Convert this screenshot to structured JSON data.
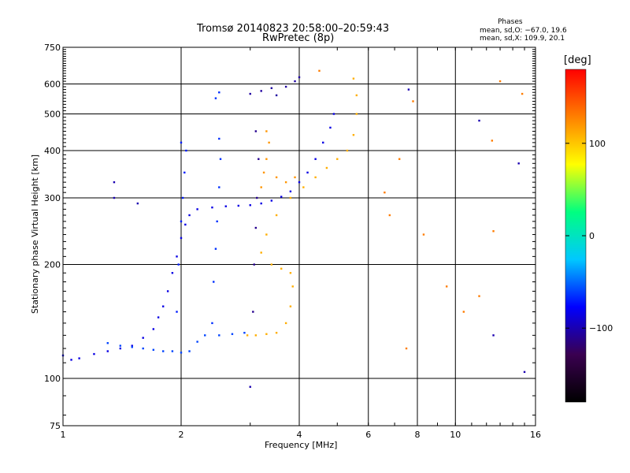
{
  "title": {
    "line1": "Tromsø 20140823 20:58:00–20:59:43",
    "line2": "RwPretec (8p)"
  },
  "phase_info": {
    "heading": "Phases",
    "o_mode": "mean, sd,O: −67.0, 19.6",
    "x_mode": "mean, sd,X: 109.9, 20.1"
  },
  "axes": {
    "xlabel": "Frequency [MHz]",
    "ylabel": "Stationary phase Virtual Height [km]"
  },
  "colorbar": {
    "unit": "[deg]",
    "ticks": [
      {
        "value": 100,
        "label": "100"
      },
      {
        "value": 0,
        "label": "0"
      },
      {
        "value": -100,
        "label": "−100"
      }
    ],
    "range": [
      -180,
      180
    ],
    "colormap": [
      "#000000",
      "#3a0050",
      "#0000ff",
      "#00c8ff",
      "#00ff80",
      "#ffff00",
      "#ff8000",
      "#ff0000"
    ]
  },
  "chart_data": {
    "type": "scatter",
    "title": "Tromsø 20140823 20:58:00–20:59:43",
    "subtitle": "RwPretec (8p)",
    "xlabel": "Frequency [MHz]",
    "ylabel": "Stationary phase Virtual Height [km]",
    "x_scale": "log",
    "y_scale": "log",
    "xlim": [
      1,
      16
    ],
    "ylim": [
      75,
      750
    ],
    "x_ticks": [
      {
        "value": 1,
        "label": "1"
      },
      {
        "value": 2,
        "label": "2"
      },
      {
        "value": 4,
        "label": "4"
      },
      {
        "value": 6,
        "label": "6"
      },
      {
        "value": 8,
        "label": "8"
      },
      {
        "value": 10,
        "label": "10"
      },
      {
        "value": 16,
        "label": "16"
      }
    ],
    "y_ticks": [
      {
        "value": 75,
        "label": "75"
      },
      {
        "value": 100,
        "label": "100"
      },
      {
        "value": 200,
        "label": "200"
      },
      {
        "value": 300,
        "label": "300"
      },
      {
        "value": 400,
        "label": "400"
      },
      {
        "value": 500,
        "label": "500"
      },
      {
        "value": 600,
        "label": "600"
      },
      {
        "value": 750,
        "label": "750"
      }
    ],
    "grid": true,
    "color_by": "phase [deg]",
    "series": [
      {
        "trace": "O-mode low",
        "phase": -85,
        "points": [
          [
            1.0,
            115
          ],
          [
            1.05,
            112
          ],
          [
            1.1,
            113
          ],
          [
            1.2,
            116
          ],
          [
            1.3,
            118
          ],
          [
            1.4,
            120
          ],
          [
            1.5,
            122
          ],
          [
            1.6,
            128
          ],
          [
            1.7,
            135
          ],
          [
            1.75,
            145
          ],
          [
            1.8,
            155
          ],
          [
            1.85,
            170
          ],
          [
            1.9,
            190
          ],
          [
            1.95,
            210
          ],
          [
            2.0,
            235
          ],
          [
            2.05,
            255
          ],
          [
            2.1,
            270
          ],
          [
            2.2,
            280
          ],
          [
            2.4,
            283
          ],
          [
            2.6,
            285
          ],
          [
            2.8,
            286
          ],
          [
            3.0,
            287
          ],
          [
            3.2,
            290
          ],
          [
            3.4,
            295
          ],
          [
            3.6,
            302
          ],
          [
            3.8,
            312
          ],
          [
            4.0,
            330
          ],
          [
            4.2,
            350
          ],
          [
            4.4,
            380
          ],
          [
            4.6,
            420
          ],
          [
            4.8,
            460
          ],
          [
            4.9,
            500
          ]
        ]
      },
      {
        "trace": "O-mode E-region",
        "phase": -60,
        "points": [
          [
            1.3,
            124
          ],
          [
            1.4,
            122
          ],
          [
            1.5,
            121
          ],
          [
            1.6,
            120
          ],
          [
            1.7,
            119
          ],
          [
            1.8,
            118
          ],
          [
            1.9,
            118
          ],
          [
            2.0,
            117
          ],
          [
            2.1,
            118
          ],
          [
            2.2,
            125
          ],
          [
            2.3,
            130
          ],
          [
            2.5,
            130
          ],
          [
            2.7,
            131
          ],
          [
            2.9,
            132
          ]
        ]
      },
      {
        "trace": "O-mode spread 2.0 MHz",
        "phase": -70,
        "points": [
          [
            1.95,
            150
          ],
          [
            1.97,
            200
          ],
          [
            2.0,
            260
          ],
          [
            2.02,
            300
          ],
          [
            2.04,
            350
          ],
          [
            2.06,
            400
          ],
          [
            2.0,
            420
          ]
        ]
      },
      {
        "trace": "O-mode spread 2.4 MHz",
        "phase": -65,
        "points": [
          [
            2.4,
            140
          ],
          [
            2.42,
            180
          ],
          [
            2.45,
            220
          ],
          [
            2.47,
            260
          ],
          [
            2.5,
            320
          ],
          [
            2.52,
            380
          ],
          [
            2.5,
            430
          ],
          [
            2.45,
            550
          ],
          [
            2.5,
            570
          ]
        ]
      },
      {
        "trace": "O-mode spread 3.1 MHz",
        "phase": -110,
        "points": [
          [
            3.05,
            150
          ],
          [
            3.07,
            200
          ],
          [
            3.1,
            250
          ],
          [
            3.12,
            300
          ],
          [
            3.15,
            380
          ],
          [
            3.1,
            450
          ]
        ]
      },
      {
        "trace": "O-mode upper",
        "phase": -105,
        "points": [
          [
            3.5,
            560
          ],
          [
            3.7,
            590
          ],
          [
            3.9,
            610
          ],
          [
            4.0,
            625
          ],
          [
            3.4,
            585
          ],
          [
            3.2,
            575
          ],
          [
            3.0,
            565
          ]
        ]
      },
      {
        "trace": "X-mode",
        "phase": 110,
        "points": [
          [
            2.95,
            130
          ],
          [
            3.1,
            130
          ],
          [
            3.3,
            131
          ],
          [
            3.5,
            132
          ],
          [
            3.7,
            140
          ],
          [
            3.8,
            155
          ],
          [
            3.85,
            175
          ],
          [
            3.8,
            190
          ],
          [
            3.6,
            195
          ],
          [
            3.4,
            200
          ],
          [
            3.2,
            215
          ],
          [
            3.3,
            240
          ],
          [
            3.5,
            270
          ],
          [
            3.8,
            300
          ],
          [
            4.1,
            320
          ],
          [
            4.4,
            340
          ],
          [
            4.7,
            360
          ],
          [
            5.0,
            380
          ],
          [
            5.3,
            400
          ],
          [
            5.5,
            440
          ],
          [
            5.6,
            500
          ],
          [
            5.6,
            560
          ],
          [
            5.5,
            620
          ]
        ]
      },
      {
        "trace": "X-mode 3.2 MHz",
        "phase": 120,
        "points": [
          [
            3.2,
            320
          ],
          [
            3.25,
            350
          ],
          [
            3.3,
            380
          ],
          [
            3.35,
            420
          ],
          [
            3.3,
            450
          ],
          [
            3.5,
            340
          ],
          [
            3.7,
            330
          ],
          [
            3.9,
            340
          ]
        ]
      },
      {
        "trace": "scattered",
        "phase": 130,
        "points": [
          [
            4.5,
            650
          ],
          [
            6.6,
            310
          ],
          [
            6.8,
            270
          ],
          [
            7.2,
            380
          ],
          [
            7.5,
            120
          ],
          [
            8.3,
            240
          ],
          [
            9.5,
            175
          ],
          [
            11.5,
            165
          ],
          [
            12.5,
            245
          ],
          [
            13.0,
            610
          ],
          [
            14.8,
            565
          ],
          [
            10.5,
            150
          ],
          [
            12.4,
            425
          ],
          [
            7.8,
            540
          ]
        ]
      },
      {
        "trace": "scattered low",
        "phase": -100,
        "points": [
          [
            1.35,
            330
          ],
          [
            1.35,
            300
          ],
          [
            1.55,
            290
          ],
          [
            12.5,
            130
          ],
          [
            14.5,
            370
          ],
          [
            11.5,
            480
          ],
          [
            7.6,
            580
          ],
          [
            3.0,
            95
          ],
          [
            15.0,
            104
          ]
        ]
      }
    ]
  }
}
